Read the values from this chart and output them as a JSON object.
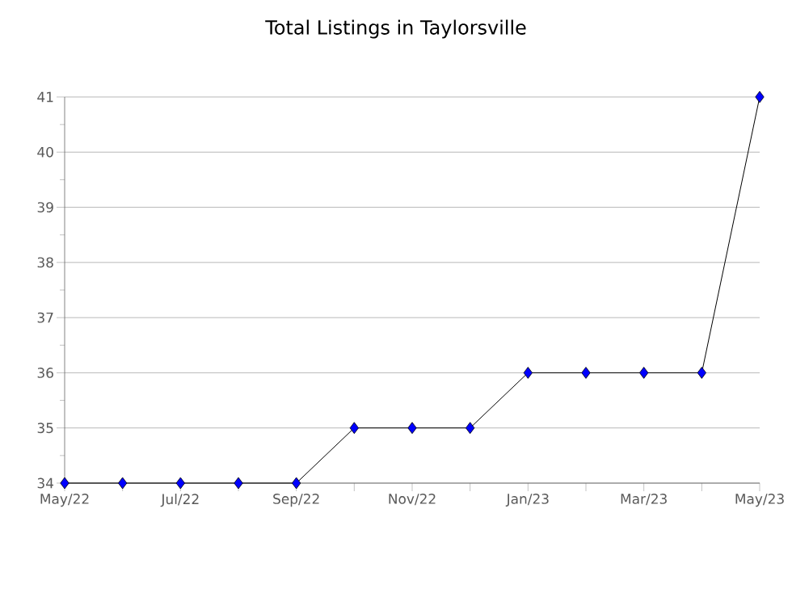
{
  "chart_data": {
    "type": "line",
    "title": "Total Listings in Taylorsville",
    "categories": [
      "May/22",
      null,
      "Jul/22",
      null,
      "Sep/22",
      null,
      "Nov/22",
      null,
      "Jan/23",
      null,
      "Mar/23",
      null,
      "May/23"
    ],
    "series": [
      {
        "color": "#0000ff",
        "values": [
          34,
          34,
          34,
          34,
          34,
          35,
          35,
          35,
          36,
          36,
          36,
          36,
          41
        ]
      }
    ],
    "ylim": [
      34,
      41
    ],
    "yticks": [
      34,
      35,
      36,
      37,
      38,
      39,
      40,
      41
    ],
    "grid": "y",
    "marker": "diamond",
    "line_style": "solid"
  }
}
